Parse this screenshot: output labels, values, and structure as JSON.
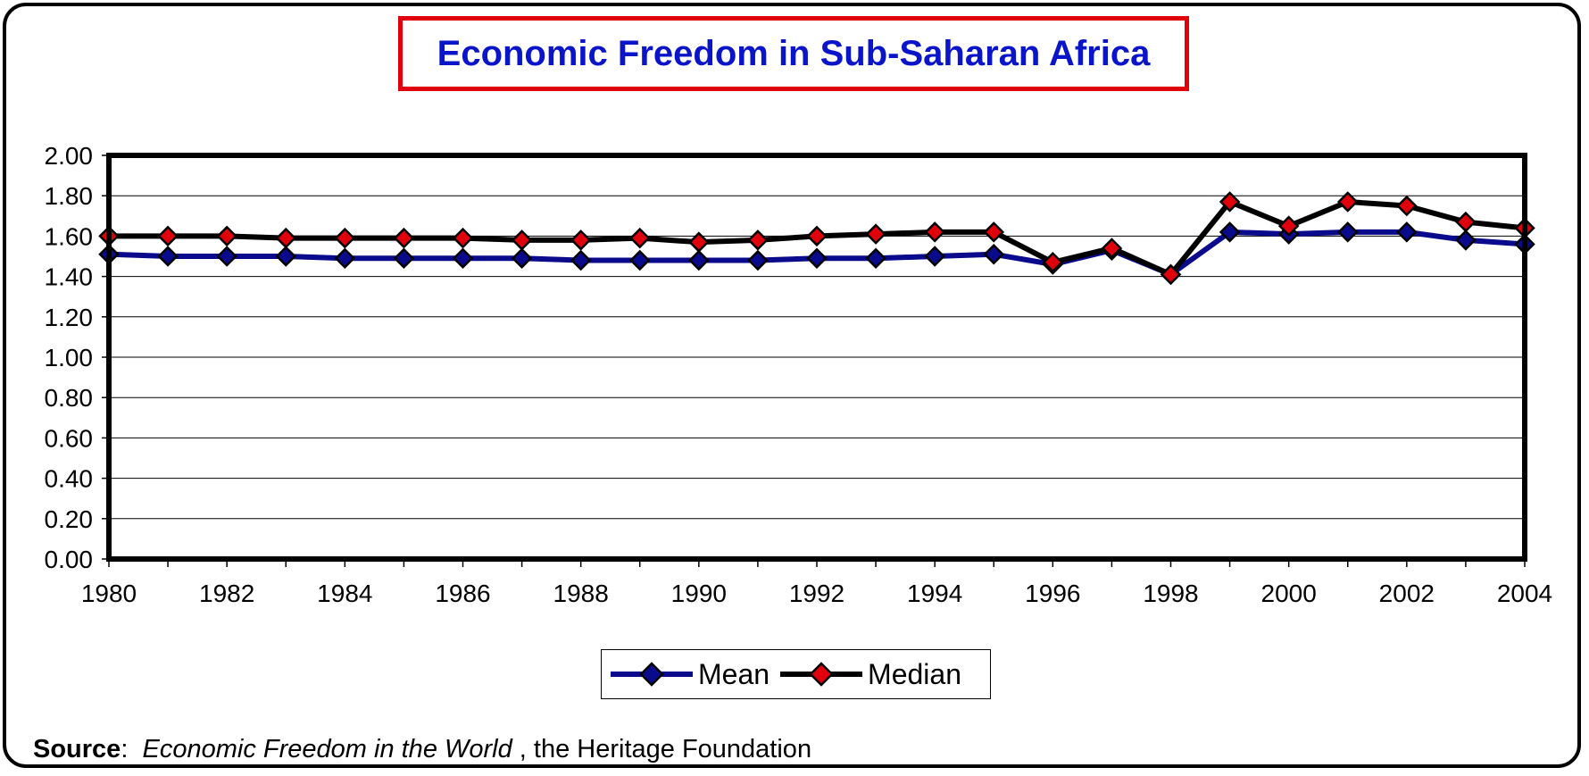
{
  "title": "Economic Freedom in Sub-Saharan Africa",
  "source": {
    "label": "Source",
    "separator": ":",
    "publication": "Economic Freedom in the World",
    "publisher": ", the Heritage Foundation"
  },
  "chart_data": {
    "type": "line",
    "title": "Economic Freedom in Sub-Saharan Africa",
    "xlabel": "",
    "ylabel": "",
    "ylim": [
      0,
      2.0
    ],
    "yticks": [
      "0.00",
      "0.20",
      "0.40",
      "0.60",
      "0.80",
      "1.00",
      "1.20",
      "1.40",
      "1.60",
      "1.80",
      "2.00"
    ],
    "x": [
      1980,
      1981,
      1982,
      1983,
      1984,
      1985,
      1986,
      1987,
      1988,
      1989,
      1990,
      1991,
      1992,
      1993,
      1994,
      1995,
      1996,
      1997,
      1998,
      1999,
      2000,
      2001,
      2002,
      2003,
      2004
    ],
    "xticks": [
      "1980",
      "1982",
      "1984",
      "1986",
      "1988",
      "1990",
      "1992",
      "1994",
      "1996",
      "1998",
      "2000",
      "2002",
      "2004"
    ],
    "grid": true,
    "legend_position": "bottom",
    "series": [
      {
        "name": "Mean",
        "line_color": "#0a0a8c",
        "marker_color": "#0a0a8c",
        "values": [
          1.51,
          1.5,
          1.5,
          1.5,
          1.49,
          1.49,
          1.49,
          1.49,
          1.48,
          1.48,
          1.48,
          1.48,
          1.49,
          1.49,
          1.5,
          1.51,
          1.46,
          1.53,
          1.41,
          1.62,
          1.61,
          1.62,
          1.62,
          1.58,
          1.56
        ]
      },
      {
        "name": "Median",
        "line_color": "#000000",
        "marker_color": "#e0000b",
        "values": [
          1.6,
          1.6,
          1.6,
          1.59,
          1.59,
          1.59,
          1.59,
          1.58,
          1.58,
          1.59,
          1.57,
          1.58,
          1.6,
          1.61,
          1.62,
          1.62,
          1.47,
          1.54,
          1.41,
          1.77,
          1.65,
          1.77,
          1.75,
          1.67,
          1.64
        ]
      }
    ]
  }
}
